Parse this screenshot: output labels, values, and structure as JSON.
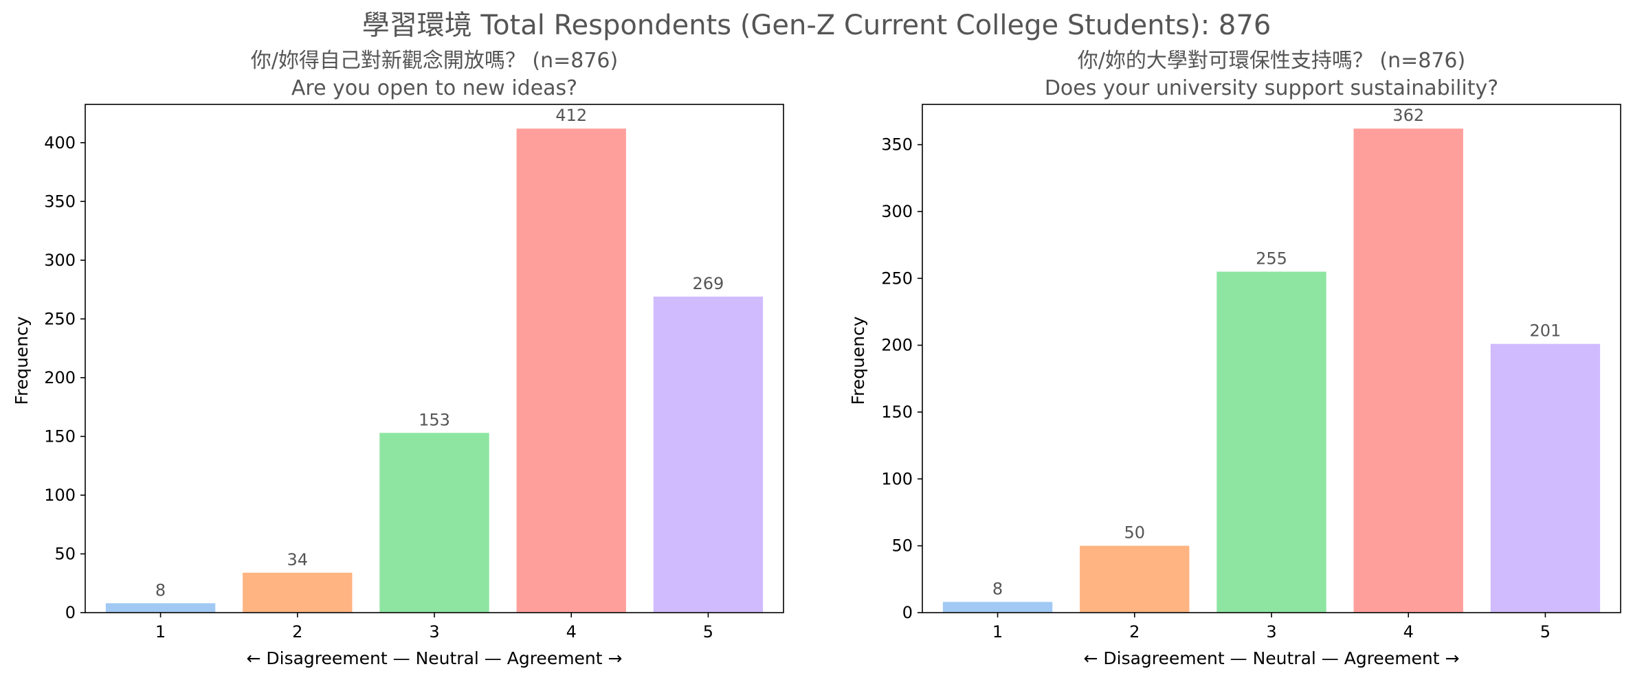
{
  "suptitle": "學習環境  Total Respondents (Gen-Z Current College Students): 876",
  "colors": [
    "#a1c9f4",
    "#ffb482",
    "#8de5a1",
    "#ff9f9b",
    "#d0bbff"
  ],
  "chart_data": [
    {
      "type": "bar",
      "title": "你/妳得自己對新觀念開放嗎？ (n=876)",
      "subtitle": "Are you open to new ideas?",
      "xlabel": "← Disagreement — Neutral — Agreement →",
      "ylabel": "Frequency",
      "categories": [
        "1",
        "2",
        "3",
        "4",
        "5"
      ],
      "values": [
        8,
        34,
        153,
        412,
        269
      ],
      "ylim": [
        0,
        432.6
      ],
      "yticks": [
        0,
        50,
        100,
        150,
        200,
        250,
        300,
        350,
        400
      ],
      "grid": false
    },
    {
      "type": "bar",
      "title": "你/妳的大學對可環保性支持嗎？ (n=876)",
      "subtitle": "Does your university support sustainability?",
      "xlabel": "← Disagreement — Neutral — Agreement →",
      "ylabel": "Frequency",
      "categories": [
        "1",
        "2",
        "3",
        "4",
        "5"
      ],
      "values": [
        8,
        50,
        255,
        362,
        201
      ],
      "ylim": [
        0,
        380.1
      ],
      "yticks": [
        0,
        50,
        100,
        150,
        200,
        250,
        300,
        350
      ],
      "grid": false
    }
  ]
}
